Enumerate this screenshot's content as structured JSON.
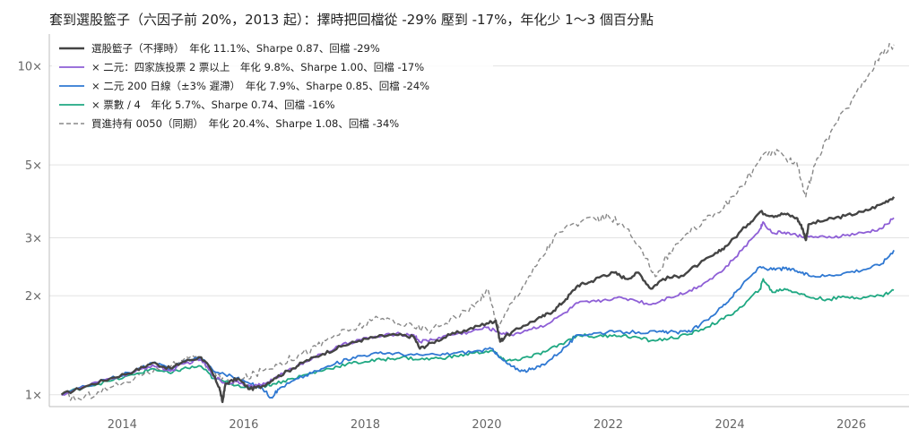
{
  "chart_data": {
    "type": "line",
    "title": "套到選股籃子（六因子前 20%，2013 起）：擇時把回檔從 -29% 壓到 -17%，年化少 1～3 個百分點",
    "xlabel": "",
    "ylabel": "",
    "y_scale": "log",
    "xlim": [
      2012.8,
      2026.95
    ],
    "ylim": [
      0.92,
      12.5
    ],
    "x_ticks": [
      2014,
      2016,
      2018,
      2020,
      2022,
      2024,
      2026
    ],
    "x_tick_labels": [
      "2014",
      "2016",
      "2018",
      "2020",
      "2022",
      "2024",
      "2026"
    ],
    "y_ticks": [
      1,
      2,
      3,
      5,
      10
    ],
    "y_tick_labels": [
      "1×",
      "2×",
      "3×",
      "5×",
      "10×"
    ],
    "grid": "horizontal",
    "legend_position": "top-left",
    "series": [
      {
        "name": "選股籃子（不擇時）　年化 11.1%、Sharpe 0.87、回檔 -29%",
        "color": "#444444",
        "dash": "solid",
        "width": 2.4,
        "points": [
          [
            2013.0,
            1.0
          ],
          [
            2013.4,
            1.06
          ],
          [
            2013.8,
            1.12
          ],
          [
            2014.2,
            1.18
          ],
          [
            2014.5,
            1.25
          ],
          [
            2014.8,
            1.2
          ],
          [
            2015.0,
            1.26
          ],
          [
            2015.3,
            1.3
          ],
          [
            2015.45,
            1.2
          ],
          [
            2015.6,
            1.05
          ],
          [
            2015.65,
            0.95
          ],
          [
            2015.7,
            1.08
          ],
          [
            2015.9,
            1.12
          ],
          [
            2016.1,
            1.04
          ],
          [
            2016.3,
            1.06
          ],
          [
            2016.5,
            1.12
          ],
          [
            2016.8,
            1.2
          ],
          [
            2017.0,
            1.26
          ],
          [
            2017.3,
            1.33
          ],
          [
            2017.6,
            1.4
          ],
          [
            2017.9,
            1.46
          ],
          [
            2018.2,
            1.5
          ],
          [
            2018.5,
            1.52
          ],
          [
            2018.8,
            1.5
          ],
          [
            2018.9,
            1.38
          ],
          [
            2019.1,
            1.44
          ],
          [
            2019.4,
            1.52
          ],
          [
            2019.7,
            1.58
          ],
          [
            2020.0,
            1.65
          ],
          [
            2020.15,
            1.68
          ],
          [
            2020.22,
            1.45
          ],
          [
            2020.3,
            1.5
          ],
          [
            2020.6,
            1.62
          ],
          [
            2020.9,
            1.72
          ],
          [
            2021.1,
            1.8
          ],
          [
            2021.3,
            1.95
          ],
          [
            2021.5,
            2.15
          ],
          [
            2021.7,
            2.2
          ],
          [
            2021.9,
            2.3
          ],
          [
            2022.1,
            2.35
          ],
          [
            2022.3,
            2.25
          ],
          [
            2022.5,
            2.35
          ],
          [
            2022.7,
            2.1
          ],
          [
            2022.9,
            2.25
          ],
          [
            2023.2,
            2.3
          ],
          [
            2023.5,
            2.5
          ],
          [
            2023.8,
            2.7
          ],
          [
            2024.0,
            2.9
          ],
          [
            2024.3,
            3.3
          ],
          [
            2024.5,
            3.6
          ],
          [
            2024.7,
            3.5
          ],
          [
            2024.9,
            3.55
          ],
          [
            2025.1,
            3.45
          ],
          [
            2025.2,
            3.2
          ],
          [
            2025.25,
            2.95
          ],
          [
            2025.3,
            3.3
          ],
          [
            2025.6,
            3.4
          ],
          [
            2025.9,
            3.5
          ],
          [
            2026.2,
            3.6
          ],
          [
            2026.5,
            3.8
          ],
          [
            2026.7,
            4.0
          ]
        ]
      },
      {
        "name": "× 二元：四家族投票 2 票以上　年化 9.8%、Sharpe 1.00、回檔 -17%",
        "color": "#8e5fd6",
        "dash": "solid",
        "width": 1.8,
        "points": [
          [
            2013.0,
            1.0
          ],
          [
            2013.4,
            1.06
          ],
          [
            2013.8,
            1.12
          ],
          [
            2014.2,
            1.17
          ],
          [
            2014.5,
            1.23
          ],
          [
            2014.8,
            1.18
          ],
          [
            2015.0,
            1.24
          ],
          [
            2015.3,
            1.28
          ],
          [
            2015.5,
            1.14
          ],
          [
            2015.7,
            1.08
          ],
          [
            2015.9,
            1.1
          ],
          [
            2016.1,
            1.06
          ],
          [
            2016.3,
            1.07
          ],
          [
            2016.5,
            1.12
          ],
          [
            2016.8,
            1.2
          ],
          [
            2017.0,
            1.26
          ],
          [
            2017.3,
            1.33
          ],
          [
            2017.6,
            1.41
          ],
          [
            2017.9,
            1.47
          ],
          [
            2018.2,
            1.5
          ],
          [
            2018.5,
            1.53
          ],
          [
            2018.8,
            1.52
          ],
          [
            2018.9,
            1.45
          ],
          [
            2019.1,
            1.47
          ],
          [
            2019.4,
            1.52
          ],
          [
            2019.7,
            1.55
          ],
          [
            2020.0,
            1.6
          ],
          [
            2020.2,
            1.55
          ],
          [
            2020.4,
            1.52
          ],
          [
            2020.7,
            1.58
          ],
          [
            2021.0,
            1.64
          ],
          [
            2021.3,
            1.78
          ],
          [
            2021.5,
            1.9
          ],
          [
            2021.8,
            1.92
          ],
          [
            2022.1,
            1.97
          ],
          [
            2022.4,
            1.95
          ],
          [
            2022.7,
            1.88
          ],
          [
            2023.0,
            1.98
          ],
          [
            2023.3,
            2.05
          ],
          [
            2023.6,
            2.2
          ],
          [
            2023.9,
            2.4
          ],
          [
            2024.2,
            2.75
          ],
          [
            2024.5,
            3.2
          ],
          [
            2024.55,
            3.35
          ],
          [
            2024.7,
            3.1
          ],
          [
            2024.9,
            3.12
          ],
          [
            2025.1,
            3.05
          ],
          [
            2025.3,
            3.02
          ],
          [
            2025.6,
            3.0
          ],
          [
            2025.9,
            3.05
          ],
          [
            2026.2,
            3.1
          ],
          [
            2026.5,
            3.2
          ],
          [
            2026.7,
            3.45
          ]
        ]
      },
      {
        "name": "× 二元 200 日線（±3% 遲滯）　年化 7.9%、Sharpe 0.85、回檔 -24%",
        "color": "#2f78d2",
        "dash": "solid",
        "width": 1.8,
        "points": [
          [
            2013.0,
            1.0
          ],
          [
            2013.4,
            1.06
          ],
          [
            2013.8,
            1.12
          ],
          [
            2014.2,
            1.18
          ],
          [
            2014.5,
            1.25
          ],
          [
            2014.8,
            1.2
          ],
          [
            2015.0,
            1.26
          ],
          [
            2015.3,
            1.3
          ],
          [
            2015.5,
            1.18
          ],
          [
            2015.8,
            1.14
          ],
          [
            2016.1,
            1.08
          ],
          [
            2016.3,
            1.05
          ],
          [
            2016.45,
            0.98
          ],
          [
            2016.6,
            1.05
          ],
          [
            2016.9,
            1.12
          ],
          [
            2017.2,
            1.18
          ],
          [
            2017.5,
            1.24
          ],
          [
            2017.8,
            1.3
          ],
          [
            2018.1,
            1.33
          ],
          [
            2018.4,
            1.34
          ],
          [
            2018.8,
            1.32
          ],
          [
            2019.2,
            1.32
          ],
          [
            2019.5,
            1.34
          ],
          [
            2019.9,
            1.36
          ],
          [
            2020.1,
            1.38
          ],
          [
            2020.2,
            1.3
          ],
          [
            2020.4,
            1.22
          ],
          [
            2020.6,
            1.18
          ],
          [
            2020.8,
            1.2
          ],
          [
            2021.0,
            1.26
          ],
          [
            2021.3,
            1.4
          ],
          [
            2021.5,
            1.52
          ],
          [
            2021.8,
            1.54
          ],
          [
            2022.1,
            1.55
          ],
          [
            2022.5,
            1.55
          ],
          [
            2022.8,
            1.55
          ],
          [
            2023.0,
            1.55
          ],
          [
            2023.3,
            1.55
          ],
          [
            2023.5,
            1.62
          ],
          [
            2023.8,
            1.8
          ],
          [
            2024.0,
            1.95
          ],
          [
            2024.2,
            2.15
          ],
          [
            2024.5,
            2.45
          ],
          [
            2024.7,
            2.4
          ],
          [
            2024.9,
            2.42
          ],
          [
            2025.1,
            2.38
          ],
          [
            2025.3,
            2.3
          ],
          [
            2025.6,
            2.3
          ],
          [
            2025.9,
            2.35
          ],
          [
            2026.2,
            2.4
          ],
          [
            2026.5,
            2.5
          ],
          [
            2026.7,
            2.75
          ]
        ]
      },
      {
        "name": "× 票數 / 4　年化 5.7%、Sharpe 0.74、回檔 -16%",
        "color": "#1fa882",
        "dash": "solid",
        "width": 1.8,
        "points": [
          [
            2013.0,
            1.0
          ],
          [
            2013.4,
            1.06
          ],
          [
            2013.8,
            1.1
          ],
          [
            2014.2,
            1.15
          ],
          [
            2014.5,
            1.2
          ],
          [
            2014.8,
            1.16
          ],
          [
            2015.0,
            1.2
          ],
          [
            2015.3,
            1.22
          ],
          [
            2015.5,
            1.12
          ],
          [
            2015.8,
            1.08
          ],
          [
            2016.1,
            1.05
          ],
          [
            2016.3,
            1.06
          ],
          [
            2016.5,
            1.08
          ],
          [
            2016.8,
            1.12
          ],
          [
            2017.1,
            1.16
          ],
          [
            2017.4,
            1.2
          ],
          [
            2017.7,
            1.24
          ],
          [
            2018.0,
            1.26
          ],
          [
            2018.3,
            1.28
          ],
          [
            2018.6,
            1.3
          ],
          [
            2018.9,
            1.28
          ],
          [
            2019.2,
            1.29
          ],
          [
            2019.5,
            1.31
          ],
          [
            2019.8,
            1.34
          ],
          [
            2020.1,
            1.36
          ],
          [
            2020.25,
            1.28
          ],
          [
            2020.4,
            1.27
          ],
          [
            2020.7,
            1.3
          ],
          [
            2021.0,
            1.36
          ],
          [
            2021.3,
            1.45
          ],
          [
            2021.5,
            1.52
          ],
          [
            2021.8,
            1.5
          ],
          [
            2022.1,
            1.52
          ],
          [
            2022.4,
            1.5
          ],
          [
            2022.7,
            1.46
          ],
          [
            2023.0,
            1.48
          ],
          [
            2023.3,
            1.52
          ],
          [
            2023.6,
            1.6
          ],
          [
            2023.9,
            1.7
          ],
          [
            2024.2,
            1.85
          ],
          [
            2024.5,
            2.1
          ],
          [
            2024.55,
            2.25
          ],
          [
            2024.7,
            2.05
          ],
          [
            2024.9,
            2.1
          ],
          [
            2025.1,
            2.05
          ],
          [
            2025.3,
            1.98
          ],
          [
            2025.6,
            1.95
          ],
          [
            2025.9,
            1.98
          ],
          [
            2026.2,
            1.98
          ],
          [
            2026.5,
            2.0
          ],
          [
            2026.7,
            2.08
          ]
        ]
      },
      {
        "name": "買進持有 0050（同期）　年化 20.4%、Sharpe 1.08、回檔 -34%",
        "color": "#888888",
        "dash": "dashed",
        "width": 1.4,
        "points": [
          [
            2013.0,
            1.0
          ],
          [
            2013.3,
            0.97
          ],
          [
            2013.6,
            1.02
          ],
          [
            2014.0,
            1.08
          ],
          [
            2014.4,
            1.18
          ],
          [
            2014.8,
            1.22
          ],
          [
            2015.2,
            1.3
          ],
          [
            2015.5,
            1.18
          ],
          [
            2015.7,
            1.08
          ],
          [
            2016.0,
            1.12
          ],
          [
            2016.3,
            1.18
          ],
          [
            2016.6,
            1.25
          ],
          [
            2016.9,
            1.32
          ],
          [
            2017.2,
            1.4
          ],
          [
            2017.5,
            1.52
          ],
          [
            2017.8,
            1.58
          ],
          [
            2018.1,
            1.68
          ],
          [
            2018.4,
            1.7
          ],
          [
            2018.8,
            1.6
          ],
          [
            2019.1,
            1.58
          ],
          [
            2019.4,
            1.7
          ],
          [
            2019.8,
            1.85
          ],
          [
            2020.0,
            2.1
          ],
          [
            2020.2,
            1.6
          ],
          [
            2020.4,
            1.9
          ],
          [
            2020.7,
            2.3
          ],
          [
            2020.9,
            2.6
          ],
          [
            2021.1,
            3.0
          ],
          [
            2021.4,
            3.3
          ],
          [
            2021.8,
            3.4
          ],
          [
            2022.0,
            3.5
          ],
          [
            2022.3,
            3.2
          ],
          [
            2022.6,
            2.6
          ],
          [
            2022.8,
            2.3
          ],
          [
            2023.0,
            2.7
          ],
          [
            2023.3,
            3.1
          ],
          [
            2023.6,
            3.4
          ],
          [
            2023.9,
            3.7
          ],
          [
            2024.2,
            4.3
          ],
          [
            2024.5,
            5.2
          ],
          [
            2024.7,
            5.5
          ],
          [
            2024.9,
            5.3
          ],
          [
            2025.1,
            5.1
          ],
          [
            2025.25,
            4.0
          ],
          [
            2025.4,
            5.0
          ],
          [
            2025.7,
            6.5
          ],
          [
            2026.0,
            7.8
          ],
          [
            2026.3,
            9.5
          ],
          [
            2026.5,
            11.0
          ],
          [
            2026.7,
            11.6
          ]
        ]
      }
    ]
  }
}
